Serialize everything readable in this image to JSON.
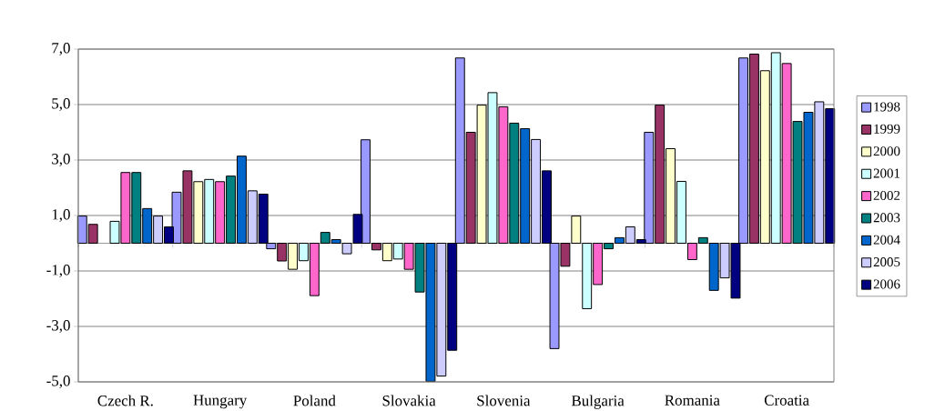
{
  "chart_data": {
    "type": "bar",
    "categories": [
      "Czech R.",
      "Hungary",
      "Poland",
      "Slovakia",
      "Slovenia",
      "Bulgaria",
      "Romania",
      "Croatia"
    ],
    "series": [
      {
        "name": "1998",
        "color": "#9999ff",
        "values": [
          0.98,
          1.84,
          -0.2,
          3.73,
          6.68,
          -3.8,
          4.0,
          6.68
        ]
      },
      {
        "name": "1999",
        "color": "#993366",
        "values": [
          0.68,
          2.61,
          -0.64,
          -0.24,
          4.0,
          -0.83,
          4.98,
          6.82
        ]
      },
      {
        "name": "2000",
        "color": "#ffffcc",
        "values": [
          null,
          2.22,
          -0.94,
          -0.63,
          4.98,
          0.98,
          3.41,
          6.22
        ]
      },
      {
        "name": "2001",
        "color": "#ccffff",
        "values": [
          0.79,
          2.3,
          -0.63,
          -0.57,
          5.43,
          -2.36,
          2.23,
          6.87
        ]
      },
      {
        "name": "2002",
        "color": "#ff66cc",
        "values": [
          2.55,
          2.22,
          -1.89,
          -0.94,
          4.92,
          -1.49,
          -0.59,
          6.48
        ]
      },
      {
        "name": "2003",
        "color": "#008080",
        "values": [
          2.55,
          2.42,
          0.39,
          -1.76,
          4.33,
          -0.2,
          0.2,
          4.39
        ]
      },
      {
        "name": "2004",
        "color": "#0066cc",
        "values": [
          1.25,
          3.14,
          0.13,
          -4.98,
          4.13,
          0.2,
          -1.7,
          4.72
        ]
      },
      {
        "name": "2005",
        "color": "#ccccff",
        "values": [
          0.98,
          1.89,
          -0.38,
          -4.79,
          3.74,
          0.59,
          -1.25,
          5.1
        ]
      },
      {
        "name": "2006",
        "color": "#000080",
        "values": [
          0.59,
          1.77,
          1.04,
          -3.86,
          2.61,
          0.13,
          -1.98,
          4.85
        ]
      }
    ],
    "ylim": [
      -5,
      7
    ],
    "yticks": [
      {
        "value": -5,
        "label": "-5,0"
      },
      {
        "value": -3,
        "label": "-3,0"
      },
      {
        "value": -1,
        "label": "-1,0"
      },
      {
        "value": 1,
        "label": "1,0"
      },
      {
        "value": 3,
        "label": "3,0"
      },
      {
        "value": 5,
        "label": "5,0"
      },
      {
        "value": 7,
        "label": "7,0"
      }
    ],
    "grid": "y",
    "legend": "right"
  }
}
